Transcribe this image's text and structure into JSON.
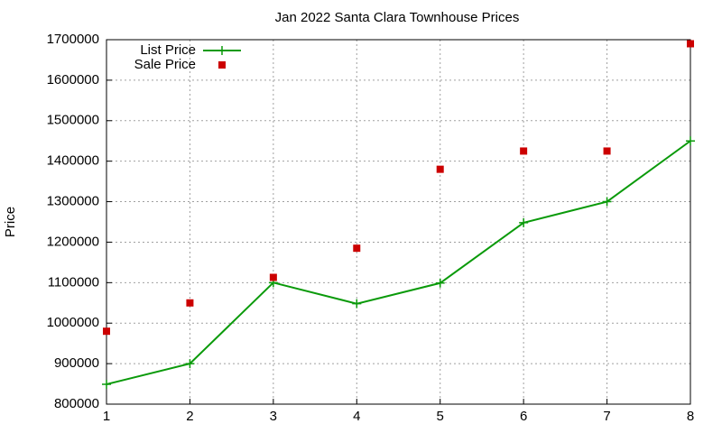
{
  "chart_data": {
    "type": "line",
    "title": "Jan 2022 Santa Clara Townhouse Prices",
    "y_label": "Price",
    "x": [
      1,
      2,
      3,
      4,
      5,
      6,
      7,
      8
    ],
    "series": [
      {
        "name": "List Price",
        "color": "#0a9a0a",
        "mode": "lines+markers",
        "values": [
          849000,
          900000,
          1100000,
          1048000,
          1099000,
          1248000,
          1300000,
          1450000
        ]
      },
      {
        "name": "Sale Price",
        "color": "#cc0000",
        "mode": "markers",
        "values": [
          980000,
          1050000,
          1113000,
          1185000,
          1380000,
          1425000,
          1425000,
          1690000
        ]
      }
    ],
    "xlim": [
      1,
      8
    ],
    "xticks": [
      1,
      2,
      3,
      4,
      5,
      6,
      7,
      8
    ],
    "ylim": [
      800000,
      1700000
    ],
    "yticks": [
      800000,
      900000,
      1000000,
      1100000,
      1200000,
      1300000,
      1400000,
      1500000,
      1600000,
      1700000
    ],
    "grid": true,
    "legend": "top-left"
  }
}
